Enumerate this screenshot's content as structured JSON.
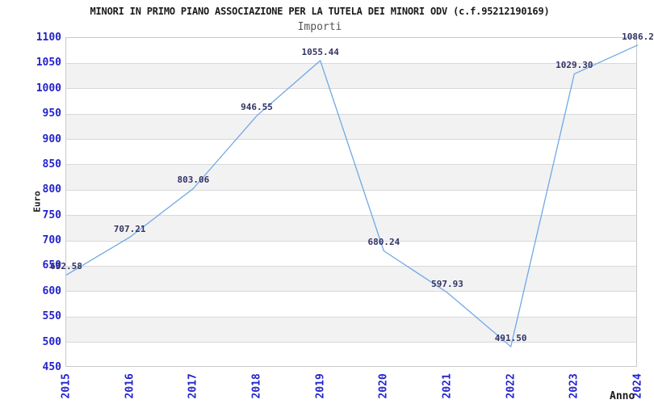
{
  "header": {
    "title": "MINORI IN PRIMO PIANO ASSOCIAZIONE PER LA TUTELA DEI MINORI ODV (c.f.95212190169)",
    "subtitle": "Importi"
  },
  "axes": {
    "y_label": "Euro",
    "x_label": "Anno"
  },
  "colors": {
    "title": "#1a1a1a",
    "subtitle": "#555555",
    "tick_blue": "#2323cc",
    "data_label_navy": "#333366",
    "line_blue": "#70a8e6",
    "band_gray": "#f2f2f2",
    "grid_gray": "#d8d8d8",
    "border_gray": "#c9c9c9",
    "axis_label_dark": "#1a1a1a"
  },
  "chart_data": {
    "type": "line",
    "title": "MINORI IN PRIMO PIANO ASSOCIAZIONE PER LA TUTELA DEI MINORI ODV (c.f.95212190169)",
    "subtitle": "Importi",
    "xlabel": "Anno",
    "ylabel": "Euro",
    "categories": [
      "2015",
      "2016",
      "2017",
      "2018",
      "2019",
      "2020",
      "2021",
      "2022",
      "2023",
      "2024"
    ],
    "values": [
      632.58,
      707.21,
      803.06,
      946.55,
      1055.44,
      680.24,
      597.93,
      491.5,
      1029.3,
      1086.2
    ],
    "point_labels": [
      "632.58",
      "707.21",
      "803.06",
      "946.55",
      "1055.44",
      "680.24",
      "597.93",
      "491.50",
      "1029.30",
      "1086.2"
    ],
    "ylim": [
      450,
      1100
    ],
    "ytick_step": 50,
    "grid": "horizontal gridlines every 50 with alternating white/gray bands",
    "legend": "none",
    "last_label_clipped_at_right_edge": true
  }
}
